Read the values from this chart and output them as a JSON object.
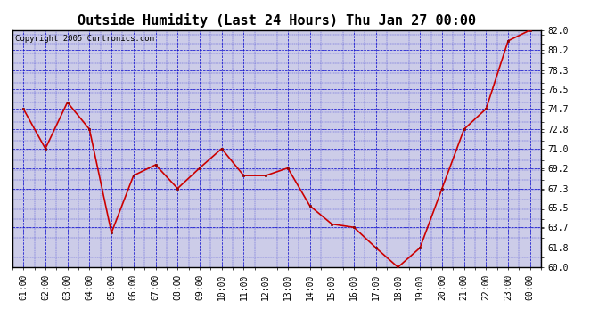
{
  "title": "Outside Humidity (Last 24 Hours) Thu Jan 27 00:00",
  "copyright": "Copyright 2005 Curtronics.com",
  "x_labels": [
    "01:00",
    "02:00",
    "03:00",
    "04:00",
    "05:00",
    "06:00",
    "07:00",
    "08:00",
    "09:00",
    "10:00",
    "11:00",
    "12:00",
    "13:00",
    "14:00",
    "15:00",
    "16:00",
    "17:00",
    "18:00",
    "19:00",
    "20:00",
    "21:00",
    "22:00",
    "23:00",
    "00:00"
  ],
  "y_values": [
    74.7,
    71.0,
    75.3,
    72.8,
    63.2,
    68.5,
    69.5,
    67.3,
    69.2,
    71.0,
    68.5,
    68.5,
    69.2,
    65.7,
    64.0,
    63.7,
    61.8,
    60.0,
    61.8,
    67.3,
    72.8,
    74.7,
    81.0,
    82.0
  ],
  "ylim": [
    60.0,
    82.0
  ],
  "yticks": [
    60.0,
    61.8,
    63.7,
    65.5,
    67.3,
    69.2,
    71.0,
    72.8,
    74.7,
    76.5,
    78.3,
    80.2,
    82.0
  ],
  "line_color": "#cc0000",
  "marker_color": "#cc0000",
  "background_color": "#ffffff",
  "plot_bg_color": "#cccce8",
  "grid_color": "#0000cc",
  "title_fontsize": 11,
  "copyright_fontsize": 6.5,
  "tick_fontsize": 7,
  "title_color": "#000000",
  "border_color": "#000000"
}
